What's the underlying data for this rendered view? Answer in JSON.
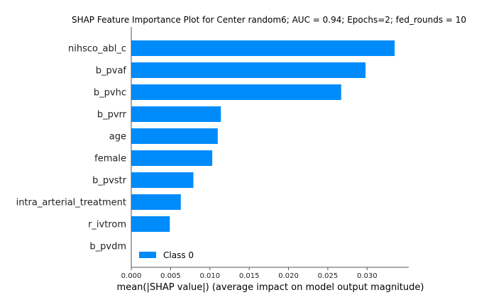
{
  "chart_data": {
    "type": "bar",
    "orientation": "horizontal",
    "title": "SHAP Feature Importance Plot for Center random6; AUC = 0.94; Epochs=2; fed_rounds = 10",
    "xlabel": "mean(|SHAP value|) (average impact on model output magnitude)",
    "ylabel": "",
    "xlim": [
      0,
      0.0353
    ],
    "xticks": [
      "0.000",
      "0.005",
      "0.010",
      "0.015",
      "0.020",
      "0.025",
      "0.030"
    ],
    "xtick_values": [
      0,
      0.005,
      0.01,
      0.015,
      0.02,
      0.025,
      0.03
    ],
    "categories": [
      "nihsco_abl_c",
      "b_pvaf",
      "b_pvhc",
      "b_pvrr",
      "age",
      "female",
      "b_pvstr",
      "intra_arterial_treatment",
      "r_ivtrom",
      "b_pvdm"
    ],
    "series": [
      {
        "name": "Class 0",
        "color": "#008bfb",
        "values": [
          0.0335,
          0.0298,
          0.0267,
          0.0114,
          0.011,
          0.0103,
          0.0079,
          0.0063,
          0.0049,
          0.0
        ]
      }
    ],
    "legend": {
      "position": "bottom-left",
      "entries": [
        "Class 0"
      ]
    },
    "grid": false
  }
}
